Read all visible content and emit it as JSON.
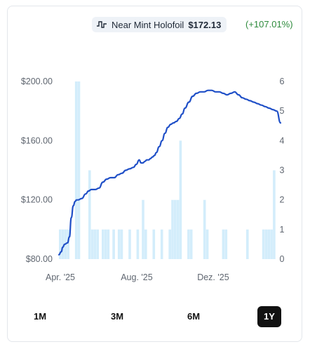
{
  "header": {
    "variant": "Near Mint Holofoil",
    "price": "$172.13",
    "change": "(+107.01%)",
    "icon": "price-chart-icon"
  },
  "range_tabs": [
    {
      "label": "1M",
      "active": false
    },
    {
      "label": "3M",
      "active": false
    },
    {
      "label": "6M",
      "active": false
    },
    {
      "label": "1Y",
      "active": true
    }
  ],
  "colors": {
    "line": "#1f4fc7",
    "bars": "#d3edfb",
    "change_positive": "#2e8b3c",
    "active_tab": "#111111"
  },
  "chart_data": {
    "type": "line",
    "title": "",
    "x_tick_labels": [
      "Apr. '25",
      "Aug. '25",
      "Dez. '25"
    ],
    "x_tick_months": [
      0,
      4,
      8
    ],
    "x_range_months": [
      0,
      11.6
    ],
    "y_left": {
      "ticks": [
        "$200.00",
        "$160.00",
        "$120.00",
        "$80.00"
      ],
      "tick_values": [
        200,
        160,
        120,
        80
      ],
      "range": [
        80,
        200
      ]
    },
    "y_right": {
      "ticks": [
        "6",
        "5",
        "4",
        "3",
        "2",
        "1",
        "0"
      ],
      "tick_values": [
        6,
        5,
        4,
        3,
        2,
        1,
        0
      ],
      "range": [
        0,
        6
      ]
    },
    "grid": false,
    "legend": "none",
    "series": [
      {
        "type": "line",
        "axis": "left",
        "x": [
          0.0,
          0.12,
          0.2,
          0.3,
          0.45,
          0.55,
          0.65,
          0.75,
          0.85,
          0.92,
          1.0,
          1.2,
          1.4,
          1.55,
          1.7,
          1.9,
          2.1,
          2.3,
          2.5,
          2.7,
          2.9,
          3.1,
          3.3,
          3.5,
          3.7,
          3.9,
          4.05,
          4.2,
          4.3,
          4.4,
          4.5,
          4.6,
          4.7,
          4.8,
          4.9,
          5.0,
          5.1,
          5.25,
          5.4,
          5.55,
          5.7,
          5.85,
          6.0,
          6.15,
          6.3,
          6.45,
          6.6,
          6.8,
          7.0,
          7.2,
          7.4,
          7.6,
          7.8,
          8.0,
          8.2,
          8.4,
          8.6,
          8.8,
          9.0,
          9.2,
          9.4,
          9.6,
          9.8,
          10.0,
          10.2,
          10.4,
          10.6,
          10.8,
          11.0,
          11.2,
          11.4,
          11.6
        ],
        "y": [
          83,
          85,
          88,
          90,
          91,
          95,
          108,
          116,
          119,
          120,
          120,
          121,
          124,
          126,
          127,
          127,
          128,
          132,
          134,
          135,
          135,
          137,
          138,
          140,
          141,
          142,
          144,
          147,
          145,
          145,
          146,
          147,
          147,
          148,
          149,
          150,
          152,
          156,
          160,
          165,
          169,
          171,
          172,
          173,
          175,
          178,
          182,
          186,
          190,
          192,
          193,
          193,
          194,
          194,
          193,
          193,
          192,
          191,
          192,
          193,
          191,
          189,
          188,
          187,
          186,
          185,
          184,
          183,
          182,
          181,
          180,
          172
        ]
      },
      {
        "type": "bar",
        "axis": "right",
        "name": "",
        "x": [
          0.0,
          0.14,
          0.28,
          0.42,
          0.56,
          0.7,
          0.84,
          0.98,
          1.12,
          1.26,
          1.4,
          1.54,
          1.68,
          1.82,
          1.96,
          2.1,
          2.24,
          2.38,
          2.52,
          2.66,
          2.8,
          2.94,
          3.08,
          3.22,
          3.36,
          3.5,
          3.64,
          3.78,
          3.92,
          4.06,
          4.2,
          4.34,
          4.48,
          4.62,
          4.76,
          4.9,
          5.04,
          5.18,
          5.32,
          5.46,
          5.6,
          5.74,
          5.88,
          6.02,
          6.16,
          6.3,
          6.44,
          6.58,
          6.72,
          6.86,
          7.0,
          7.14,
          7.28,
          7.42,
          7.56,
          7.7,
          7.84,
          7.98,
          8.12,
          8.26,
          8.4,
          8.54,
          8.68,
          8.82,
          8.96,
          9.1,
          9.24,
          9.38,
          9.52,
          9.66,
          9.8,
          9.94,
          10.08,
          10.22,
          10.36,
          10.5,
          10.64,
          10.78,
          10.92,
          11.06,
          11.2,
          11.34,
          11.48
        ],
        "y": [
          1,
          1,
          1,
          1,
          0,
          0,
          6,
          6,
          0,
          0,
          0,
          3,
          1,
          1,
          1,
          0,
          1,
          1,
          1,
          0,
          1,
          0,
          1,
          1,
          0,
          0,
          1,
          0,
          0,
          1,
          0,
          2,
          1,
          0,
          0,
          1,
          0,
          0,
          1,
          0,
          0,
          1,
          2,
          2,
          2,
          4,
          0,
          0,
          1,
          1,
          0,
          0,
          0,
          0,
          2,
          1,
          0,
          0,
          0,
          0,
          0,
          1,
          1,
          0,
          0,
          0,
          0,
          0,
          0,
          0,
          1,
          0,
          0,
          0,
          0,
          0,
          1,
          1,
          1,
          1,
          3,
          0,
          0
        ]
      }
    ]
  }
}
